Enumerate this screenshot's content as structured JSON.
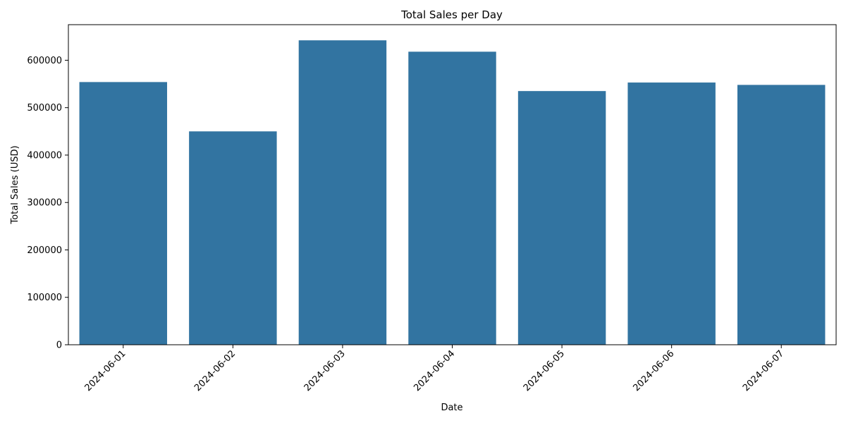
{
  "chart_data": {
    "type": "bar",
    "title": "Total Sales per Day",
    "xlabel": "Date",
    "ylabel": "Total Sales (USD)",
    "categories": [
      "2024-06-01",
      "2024-06-02",
      "2024-06-03",
      "2024-06-04",
      "2024-06-05",
      "2024-06-06",
      "2024-06-07"
    ],
    "values": [
      554000,
      450000,
      642000,
      618000,
      535000,
      553000,
      548000
    ],
    "ylim": [
      0,
      675000
    ],
    "yticks": [
      0,
      100000,
      200000,
      300000,
      400000,
      500000,
      600000
    ],
    "ytick_labels": [
      "0",
      "100000",
      "200000",
      "300000",
      "400000",
      "500000",
      "600000"
    ],
    "grid": false,
    "legend": "none",
    "bar_color": "#3274a1",
    "axis_color": "#000000"
  }
}
